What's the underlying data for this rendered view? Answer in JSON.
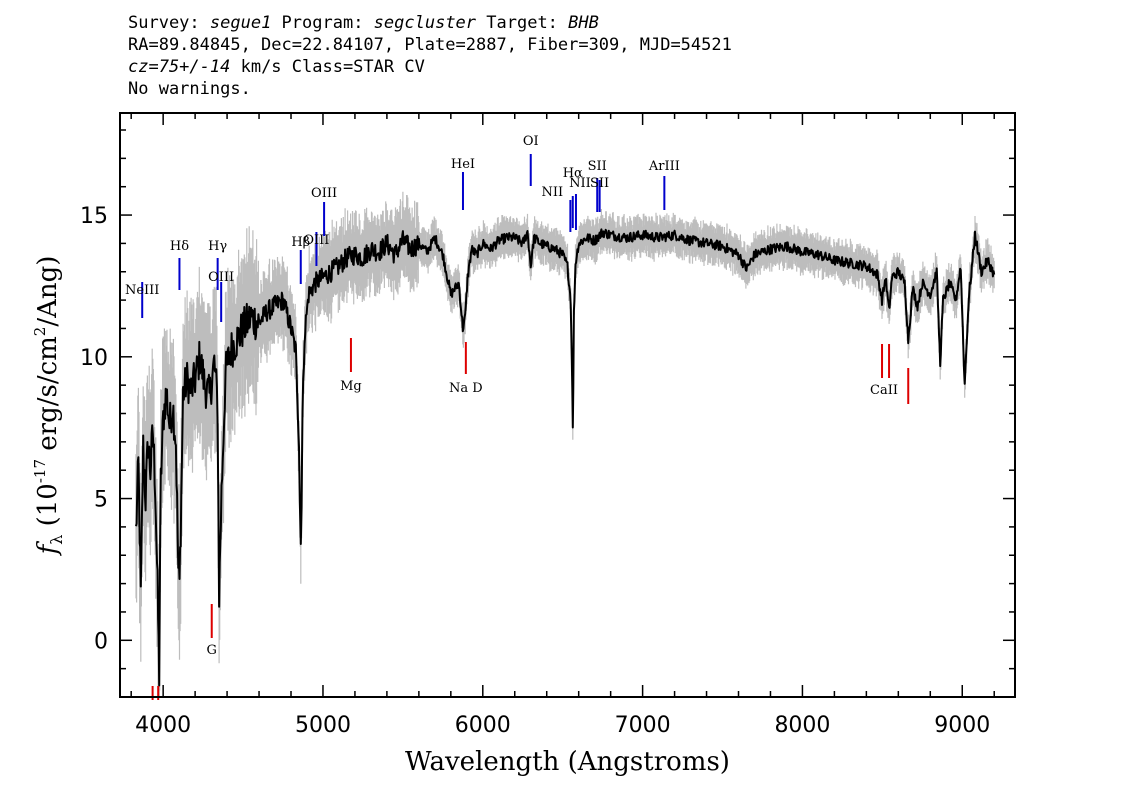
{
  "header": {
    "line1": {
      "p1": "Survey: ",
      "survey": "segue1",
      "p2": " Program: ",
      "program": "segcluster",
      "p3": " Target: ",
      "target": "BHB"
    },
    "line2": "RA=89.84845, Dec=22.84107, Plate=2887, Fiber=309, MJD=54521",
    "line3": {
      "cz": "cz=75+/-14",
      "rest": " km/s Class=STAR CV"
    },
    "line4": "No warnings."
  },
  "chart_data": {
    "type": "line",
    "title": "",
    "xlabel": "Wavelength (Angstroms)",
    "ylabel_prefix": "f",
    "ylabel_sub": "λ",
    "ylabel_main": " (10",
    "ylabel_exp": "-17",
    "ylabel_rest": " erg/s/cm",
    "ylabel_exp2": "2",
    "ylabel_end": "/Ang)",
    "xlim": [
      3730,
      9330
    ],
    "ylim": [
      -2,
      18.6
    ],
    "xticks": [
      4000,
      5000,
      6000,
      7000,
      8000,
      9000
    ],
    "yticks": [
      0,
      5,
      10,
      15
    ],
    "grid": false,
    "colors": {
      "flux": "#000000",
      "error_band": "#bdbdbd",
      "emission_lines": "#0000cc",
      "absorption_lines": "#dd0000"
    },
    "series": [
      {
        "x": [
          3830,
          3845,
          3860,
          3875,
          3890,
          3905,
          3920,
          3935,
          3950,
          3965,
          3975,
          3985,
          4000,
          4020,
          4040,
          4060,
          4080,
          4095,
          4102,
          4110,
          4125,
          4150,
          4175,
          4200,
          4230,
          4260,
          4290,
          4320,
          4340,
          4345,
          4350,
          4365,
          4390,
          4420,
          4460,
          4500,
          4550,
          4600,
          4650,
          4700,
          4750,
          4800,
          4830,
          4850,
          4855,
          4861,
          4866,
          4872,
          4885,
          4910,
          4950,
          5000,
          5050,
          5100,
          5150,
          5200,
          5250,
          5300,
          5350,
          5400,
          5450,
          5500,
          5550,
          5600,
          5650,
          5700,
          5750,
          5800,
          5850,
          5875,
          5890,
          5905,
          5930,
          5960,
          6000,
          6050,
          6100,
          6150,
          6200,
          6250,
          6280,
          6300,
          6320,
          6360,
          6400,
          6450,
          6500,
          6530,
          6550,
          6560,
          6563,
          6566,
          6570,
          6580,
          6600,
          6650,
          6700,
          6750,
          6800,
          6900,
          7000,
          7100,
          7200,
          7300,
          7400,
          7500,
          7600,
          7650,
          7700,
          7800,
          7900,
          8000,
          8100,
          8200,
          8300,
          8400,
          8470,
          8498,
          8520,
          8542,
          8560,
          8600,
          8640,
          8662,
          8690,
          8720,
          8750,
          8800,
          8840,
          8862,
          8880,
          8920,
          8960,
          8990,
          9015,
          9040,
          9080,
          9120,
          9160,
          9200
        ],
        "y": [
          3.8,
          6.2,
          1.6,
          6.8,
          5.0,
          7.0,
          6.0,
          7.4,
          5.5,
          1.8,
          -1.2,
          5.6,
          7.8,
          8.8,
          7.6,
          8.3,
          7.0,
          2.5,
          2.0,
          4.0,
          8.7,
          9.2,
          8.8,
          9.2,
          10.0,
          9.0,
          8.6,
          9.8,
          8.4,
          5.0,
          1.6,
          5.2,
          9.4,
          10.2,
          10.6,
          11.0,
          11.4,
          11.2,
          11.6,
          11.8,
          12.0,
          11.0,
          10.2,
          7.0,
          5.0,
          3.4,
          5.0,
          8.0,
          10.8,
          12.2,
          12.6,
          12.8,
          13.0,
          13.2,
          13.5,
          13.6,
          13.5,
          13.8,
          13.7,
          14.0,
          13.6,
          14.1,
          13.8,
          14.0,
          13.7,
          14.2,
          13.6,
          12.2,
          12.6,
          11.0,
          11.4,
          12.8,
          13.8,
          13.6,
          14.0,
          13.8,
          14.1,
          14.2,
          14.2,
          14.0,
          14.4,
          13.2,
          14.2,
          14.0,
          13.9,
          13.8,
          13.6,
          13.2,
          12.0,
          9.0,
          7.4,
          9.0,
          11.5,
          13.3,
          14.0,
          14.2,
          14.1,
          14.4,
          14.3,
          14.2,
          14.3,
          14.2,
          14.3,
          14.1,
          14.0,
          13.9,
          13.6,
          13.1,
          13.6,
          13.8,
          13.9,
          13.7,
          13.6,
          13.4,
          13.3,
          13.2,
          12.9,
          12.0,
          12.8,
          11.6,
          12.8,
          13.0,
          12.6,
          10.6,
          12.4,
          11.8,
          12.6,
          12.2,
          13.0,
          9.8,
          12.0,
          12.6,
          12.0,
          13.2,
          9.0,
          12.0,
          14.3,
          13.0,
          13.4,
          12.9
        ]
      }
    ],
    "line_labels": {
      "emission": [
        {
          "name": "NeIII",
          "x": 3869
        },
        {
          "name": "Hδ",
          "x": 4102
        },
        {
          "name": "Hγ",
          "x": 4341
        },
        {
          "name": "OIII",
          "x": 4363
        },
        {
          "name": "Hβ",
          "x": 4861
        },
        {
          "name": "OIII",
          "x": 4959
        },
        {
          "name": "OIII",
          "x": 5007
        },
        {
          "name": "HeI",
          "x": 5876
        },
        {
          "name": "OI",
          "x": 6300
        },
        {
          "name": "NII",
          "x": 6548
        },
        {
          "name": "Hα",
          "x": 6563
        },
        {
          "name": "NII",
          "x": 6583
        },
        {
          "name": "SII",
          "x": 6716
        },
        {
          "name": "SII",
          "x": 6731
        },
        {
          "name": "ArIII",
          "x": 7136
        }
      ],
      "absorption": [
        {
          "name": "",
          "x": 3934
        },
        {
          "name": "",
          "x": 3969
        },
        {
          "name": "G",
          "x": 4304
        },
        {
          "name": "Mg",
          "x": 5175
        },
        {
          "name": "Na D",
          "x": 5894
        },
        {
          "name": "CaII",
          "x": 8498
        },
        {
          "name": "",
          "x": 8542
        },
        {
          "name": "",
          "x": 8662
        }
      ]
    }
  }
}
